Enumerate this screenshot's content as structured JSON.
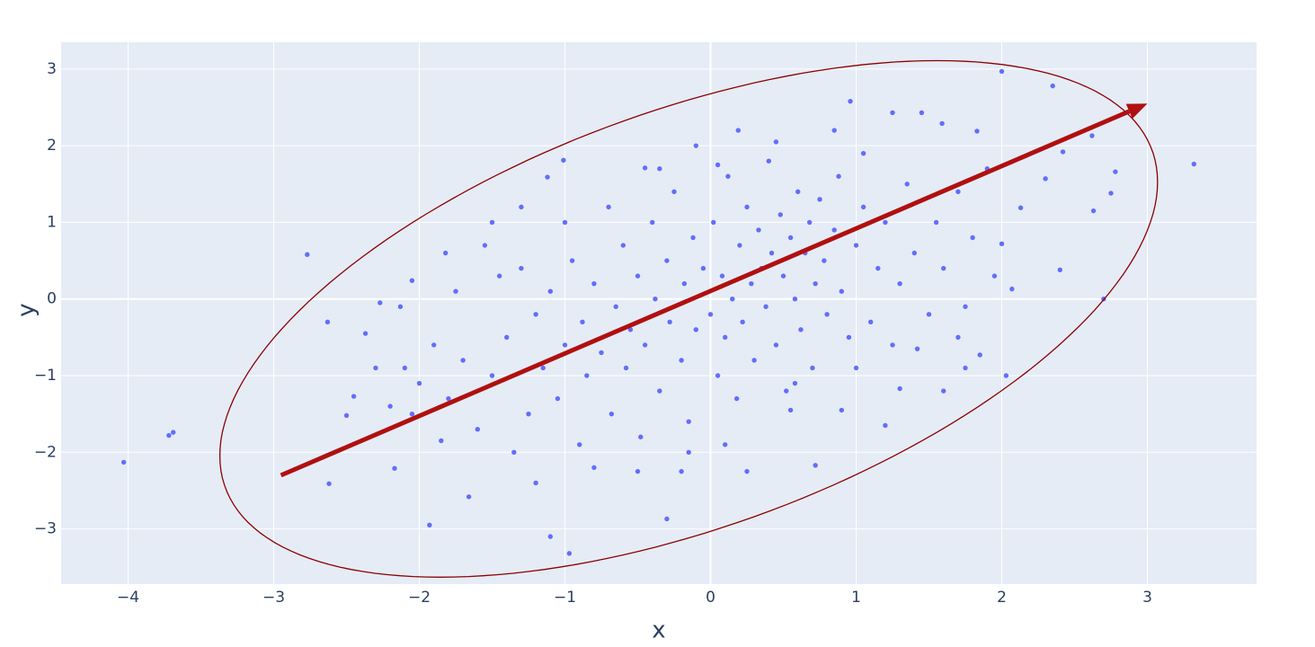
{
  "chart_data": {
    "type": "scatter",
    "x_title": "x",
    "y_title": "y",
    "xlim": [
      -4.46,
      3.75
    ],
    "ylim": [
      -3.72,
      3.35
    ],
    "xticks": [
      {
        "value": -4,
        "label": "−4"
      },
      {
        "value": -3,
        "label": "−3"
      },
      {
        "value": -2,
        "label": "−2"
      },
      {
        "value": -1,
        "label": "−1"
      },
      0,
      1,
      2,
      3
    ],
    "yticks": [
      {
        "value": -3,
        "label": "−3"
      },
      {
        "value": -2,
        "label": "−2"
      },
      {
        "value": -1,
        "label": "−1"
      },
      0,
      1,
      2,
      3
    ],
    "grid": true,
    "color": "#636efa",
    "x": [
      -4.03,
      -3.72,
      -3.69,
      -2.77,
      -2.63,
      -2.62,
      -2.5,
      -2.45,
      -2.37,
      -2.27,
      -2.17,
      -2.13,
      -2.05,
      -1.93,
      -1.85,
      -1.82,
      -1.66,
      -1.1,
      -0.97,
      -0.3,
      0.72,
      1.3,
      1.6,
      2.03,
      2.4,
      2.7,
      2.75,
      2.78,
      2.63,
      3.32,
      2.0,
      2.35,
      1.59,
      0.96,
      1.25,
      1.45,
      0.19,
      -0.1,
      -1.01,
      -1.12,
      -0.45,
      2.62,
      1.83,
      2.42,
      2.3,
      2.13,
      2.0,
      2.07,
      1.85,
      1.42,
      0.9,
      0.58,
      -1.5,
      -1.4,
      -1.3,
      -1.25,
      -1.2,
      -1.15,
      -1.1,
      -1.05,
      -1.0,
      -0.95,
      -0.9,
      -0.88,
      -0.85,
      -0.8,
      -0.75,
      -0.7,
      -0.68,
      -0.65,
      -0.6,
      -0.58,
      -0.55,
      -0.5,
      -0.48,
      -0.45,
      -0.4,
      -0.38,
      -0.35,
      -0.3,
      -0.28,
      -0.25,
      -0.2,
      -0.18,
      -0.15,
      -0.12,
      -0.1,
      -0.05,
      0.0,
      0.02,
      0.05,
      0.08,
      0.1,
      0.12,
      0.15,
      0.18,
      0.2,
      0.22,
      0.25,
      0.28,
      0.3,
      0.33,
      0.35,
      0.38,
      0.4,
      0.42,
      0.45,
      0.48,
      0.5,
      0.52,
      0.55,
      0.58,
      0.6,
      0.62,
      0.65,
      0.68,
      0.7,
      0.72,
      0.75,
      0.78,
      0.8,
      0.85,
      0.88,
      0.9,
      0.95,
      1.0,
      1.05,
      1.1,
      1.15,
      1.2,
      1.25,
      1.3,
      1.35,
      1.4,
      1.5,
      1.55,
      1.6,
      1.7,
      1.75,
      1.8,
      1.9,
      1.95,
      -1.6,
      -1.7,
      -1.75,
      -1.8,
      -1.9,
      -2.0,
      -2.05,
      -2.1,
      -2.2,
      -2.3,
      -1.55,
      -1.45,
      -1.35,
      -1.2,
      -0.8,
      -0.5,
      -0.2,
      0.25,
      -1.0,
      -1.3,
      -1.5,
      0.05,
      0.45,
      0.85,
      1.05,
      -0.35,
      -0.15,
      0.1,
      0.55,
      1.0,
      1.2,
      1.7,
      1.75
    ],
    "y": [
      -2.13,
      -1.78,
      -1.74,
      0.58,
      -0.3,
      -2.41,
      -1.52,
      -1.27,
      -0.45,
      -0.05,
      -2.21,
      -0.1,
      0.24,
      -2.95,
      -1.85,
      0.6,
      -2.58,
      -3.1,
      -3.32,
      -2.87,
      -2.17,
      -1.17,
      -1.2,
      -1.0,
      0.38,
      0.0,
      1.38,
      1.66,
      1.15,
      1.76,
      2.97,
      2.78,
      2.29,
      2.58,
      2.43,
      2.43,
      2.2,
      2.0,
      1.81,
      1.59,
      1.71,
      2.13,
      2.19,
      1.92,
      1.57,
      1.19,
      0.72,
      0.13,
      -0.73,
      -0.65,
      -1.45,
      -1.1,
      -1.0,
      -0.5,
      0.4,
      -1.5,
      -0.2,
      -0.9,
      0.1,
      -1.3,
      -0.6,
      0.5,
      -1.9,
      -0.3,
      -1.0,
      0.2,
      -0.7,
      1.2,
      -1.5,
      -0.1,
      0.7,
      -0.9,
      -0.4,
      0.3,
      -1.8,
      -0.6,
      1.0,
      0.0,
      -1.2,
      0.5,
      -0.3,
      1.4,
      -0.8,
      0.2,
      -1.6,
      0.8,
      -0.4,
      0.4,
      -0.2,
      1.0,
      -1.0,
      0.3,
      -0.5,
      1.6,
      0.0,
      -1.3,
      0.7,
      -0.3,
      1.2,
      0.2,
      -0.8,
      0.9,
      0.4,
      -0.1,
      1.8,
      0.6,
      -0.6,
      1.1,
      0.3,
      -1.2,
      0.8,
      0.0,
      1.4,
      -0.4,
      0.6,
      1.0,
      -0.9,
      0.2,
      1.3,
      0.5,
      -0.2,
      0.9,
      1.6,
      0.1,
      -0.5,
      0.7,
      1.2,
      -0.3,
      0.4,
      1.0,
      -0.6,
      0.2,
      1.5,
      0.6,
      -0.2,
      1.0,
      0.4,
      1.4,
      -0.1,
      0.8,
      1.7,
      0.3,
      -1.7,
      -0.8,
      0.1,
      -1.3,
      -0.6,
      -1.1,
      -1.5,
      -0.9,
      -1.4,
      -0.9,
      0.7,
      0.3,
      -2.0,
      -2.4,
      -2.2,
      -2.25,
      -2.25,
      -2.25,
      1.0,
      1.2,
      1.0,
      1.75,
      2.05,
      2.2,
      1.9,
      1.7,
      -2.0,
      -1.9,
      -1.45,
      -0.9,
      -1.65,
      -0.5,
      -0.9
    ],
    "ellipse": {
      "center": [
        -0.15,
        -0.26
      ],
      "radii": [
        3.22,
        3.37
      ],
      "phase": 58,
      "color": "#8b0000"
    },
    "arrow": {
      "x": [
        -2.95,
        3.0
      ],
      "y": [
        -2.3,
        2.55
      ],
      "color": "#b01010"
    }
  }
}
